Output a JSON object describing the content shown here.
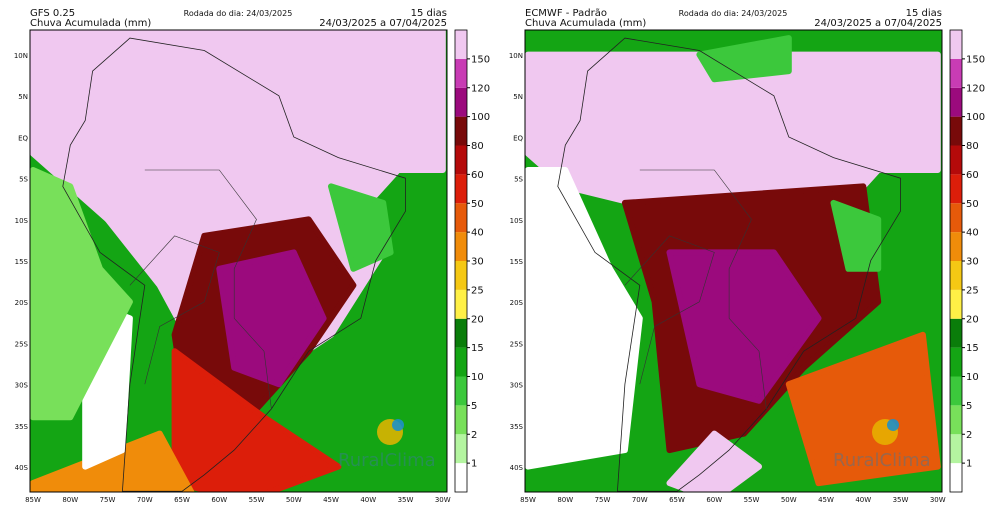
{
  "panels": [
    {
      "model": "GFS 0.25",
      "product": "Chuva Acumulada (mm)",
      "run_label": "Rodada do dia: 24/03/2025",
      "duration": "15 dias",
      "period": "24/03/2025 a 07/04/2025",
      "watermark": "RuralClima"
    },
    {
      "model": "ECMWF - Padrão",
      "product": "Chuva Acumulada (mm)",
      "run_label": "Rodada do dia: 24/03/2025",
      "duration": "15 dias",
      "period": "24/03/2025 a 07/04/2025",
      "watermark": "RuralClima"
    }
  ],
  "lat_labels": [
    "10N",
    "5N",
    "EQ",
    "5S",
    "10S",
    "15S",
    "20S",
    "25S",
    "30S",
    "35S",
    "40S"
  ],
  "lon_labels": [
    "85W",
    "80W",
    "75W",
    "70W",
    "65W",
    "60W",
    "55W",
    "50W",
    "45W",
    "40W",
    "35W",
    "30W"
  ],
  "colorbar": {
    "levels": [
      1,
      2,
      5,
      10,
      15,
      20,
      25,
      30,
      40,
      50,
      60,
      80,
      100,
      120,
      150
    ],
    "colors": [
      "#ffffff",
      "#b4f5a0",
      "#78e05a",
      "#3cc83c",
      "#14a514",
      "#0a7d0a",
      "#fff046",
      "#f5c814",
      "#f08c0a",
      "#e65a0a",
      "#dc1e0a",
      "#b40a0a",
      "#780a0a",
      "#9b0a7d",
      "#c83cb4",
      "#f0c8f0"
    ]
  }
}
